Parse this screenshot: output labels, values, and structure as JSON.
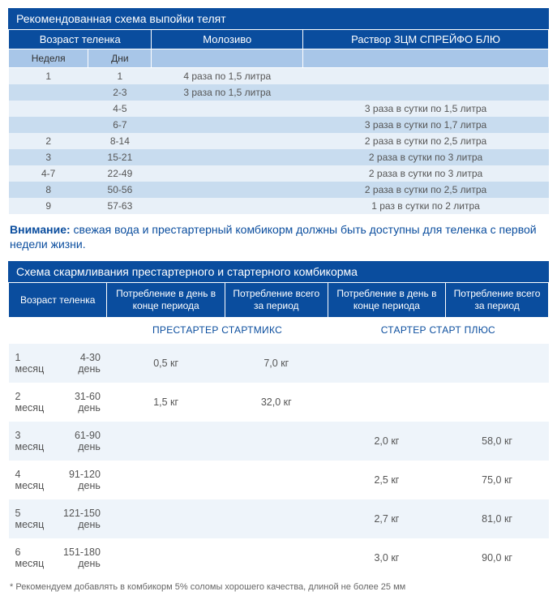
{
  "colors": {
    "header_bg": "#0a4d9e",
    "header_text": "#ffffff",
    "subhead_bg": "#a8c6e8",
    "stripe1": "#e8f0f8",
    "stripe2": "#c8dcef",
    "t2_stripe1": "#eef4fa",
    "t2_stripe2": "#ffffff",
    "attn_color": "#0a4d9e"
  },
  "table1": {
    "title": "Рекомендованная схема выпойки телят",
    "head1": {
      "age": "Возраст теленка",
      "col": "Молозиво",
      "sol": "Раствор ЗЦМ СПРЕЙФО БЛЮ"
    },
    "head2": {
      "week": "Неделя",
      "days": "Дни"
    },
    "rows": [
      {
        "week": "1",
        "days": "1",
        "colostrum": "4 раза по 1,5 литра",
        "solution": ""
      },
      {
        "week": "",
        "days": "2-3",
        "colostrum": "3 раза по 1,5 литра",
        "solution": ""
      },
      {
        "week": "",
        "days": "4-5",
        "colostrum": "",
        "solution": "3 раза в сутки по 1,5 литра"
      },
      {
        "week": "",
        "days": "6-7",
        "colostrum": "",
        "solution": "3 раза в сутки по 1,7 литра"
      },
      {
        "week": "2",
        "days": "8-14",
        "colostrum": "",
        "solution": "2 раза в сутки по 2,5 литра"
      },
      {
        "week": "3",
        "days": "15-21",
        "colostrum": "",
        "solution": "2 раза в сутки по 3 литра"
      },
      {
        "week": "4-7",
        "days": "22-49",
        "colostrum": "",
        "solution": "2 раза в сутки по 3 литра"
      },
      {
        "week": "8",
        "days": "50-56",
        "colostrum": "",
        "solution": "2 раза в сутки по 2,5 литра"
      },
      {
        "week": "9",
        "days": "57-63",
        "colostrum": "",
        "solution": "1 раз в сутки по 2 литра"
      }
    ]
  },
  "attention": {
    "bold": "Внимание:",
    "text": " свежая вода и престартерный комбикорм должны быть доступны для теленка с первой недели жизни."
  },
  "table2": {
    "title": "Схема скармливания престартерного и стартерного комбикорма",
    "head": {
      "age": "Возраст теленка",
      "per_day1": "Потребление в день в конце периода",
      "per_period1": "Потребление всего за период",
      "per_day2": "Потребление в день в конце периода",
      "per_period2": "Потребление всего за период"
    },
    "group": {
      "prestarter": "ПРЕСТАРТЕР СТАРТМИКС",
      "starter": "СТАРТЕР СТАРТ ПЛЮС"
    },
    "rows": [
      {
        "month": "1 месяц",
        "days": "4-30 день",
        "pd1": "0,5 кг",
        "pp1": "7,0 кг",
        "pd2": "",
        "pp2": ""
      },
      {
        "month": "2 месяц",
        "days": "31-60 день",
        "pd1": "1,5 кг",
        "pp1": "32,0 кг",
        "pd2": "",
        "pp2": ""
      },
      {
        "month": "3 месяц",
        "days": "61-90 день",
        "pd1": "",
        "pp1": "",
        "pd2": "2,0 кг",
        "pp2": "58,0 кг"
      },
      {
        "month": "4 месяц",
        "days": "91-120 день",
        "pd1": "",
        "pp1": "",
        "pd2": "2,5 кг",
        "pp2": "75,0 кг"
      },
      {
        "month": "5 месяц",
        "days": "121-150 день",
        "pd1": "",
        "pp1": "",
        "pd2": "2,7 кг",
        "pp2": "81,0 кг"
      },
      {
        "month": "6 месяц",
        "days": "151-180 день",
        "pd1": "",
        "pp1": "",
        "pd2": "3,0 кг",
        "pp2": "90,0 кг"
      }
    ]
  },
  "footnote": "* Рекомендуем добавлять в комбикорм 5% соломы хорошего качества, длиной не более 25 мм"
}
